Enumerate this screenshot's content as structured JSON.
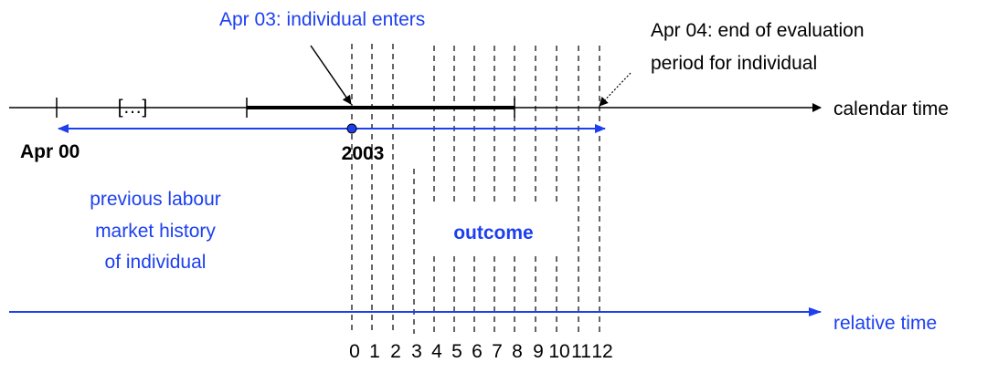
{
  "labels": {
    "apr03": "Apr 03: individual enters",
    "apr04_line1": "Apr 04: end of evaluation",
    "apr04_line2": "period for individual",
    "ellipsis": "[…]",
    "calendar_time": "calendar time",
    "apr00": "Apr 00",
    "year": "2003",
    "history_line1": "previous labour",
    "history_line2": "market history",
    "history_line3": "of individual",
    "outcome": "outcome",
    "relative_time": "relative time"
  },
  "relative_ticks": [
    "0",
    "1",
    "2",
    "3",
    "4",
    "5",
    "6",
    "7",
    "8",
    "9",
    "10",
    "11",
    "12"
  ]
}
